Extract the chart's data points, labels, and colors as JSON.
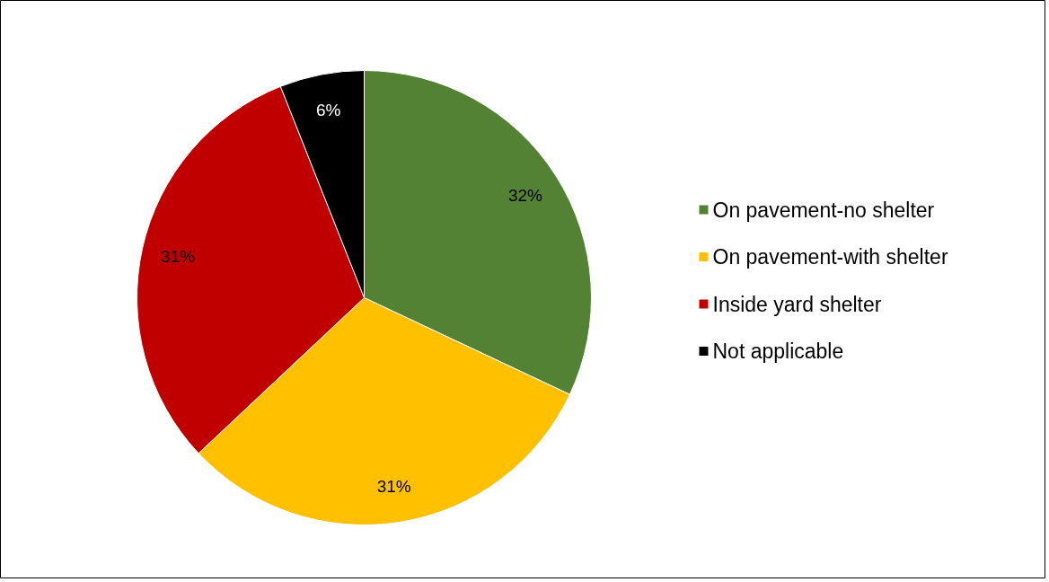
{
  "chart_data": {
    "type": "pie",
    "categories": [
      "On pavement-no shelter",
      "On pavement-with shelter",
      "Inside yard shelter",
      "Not applicable"
    ],
    "values": [
      32,
      31,
      31,
      6
    ],
    "colors": [
      "#548235",
      "#ffc000",
      "#c00000",
      "#000000"
    ],
    "value_labels": [
      "32%",
      "31%",
      "31%",
      "6%"
    ],
    "legend": "right"
  }
}
